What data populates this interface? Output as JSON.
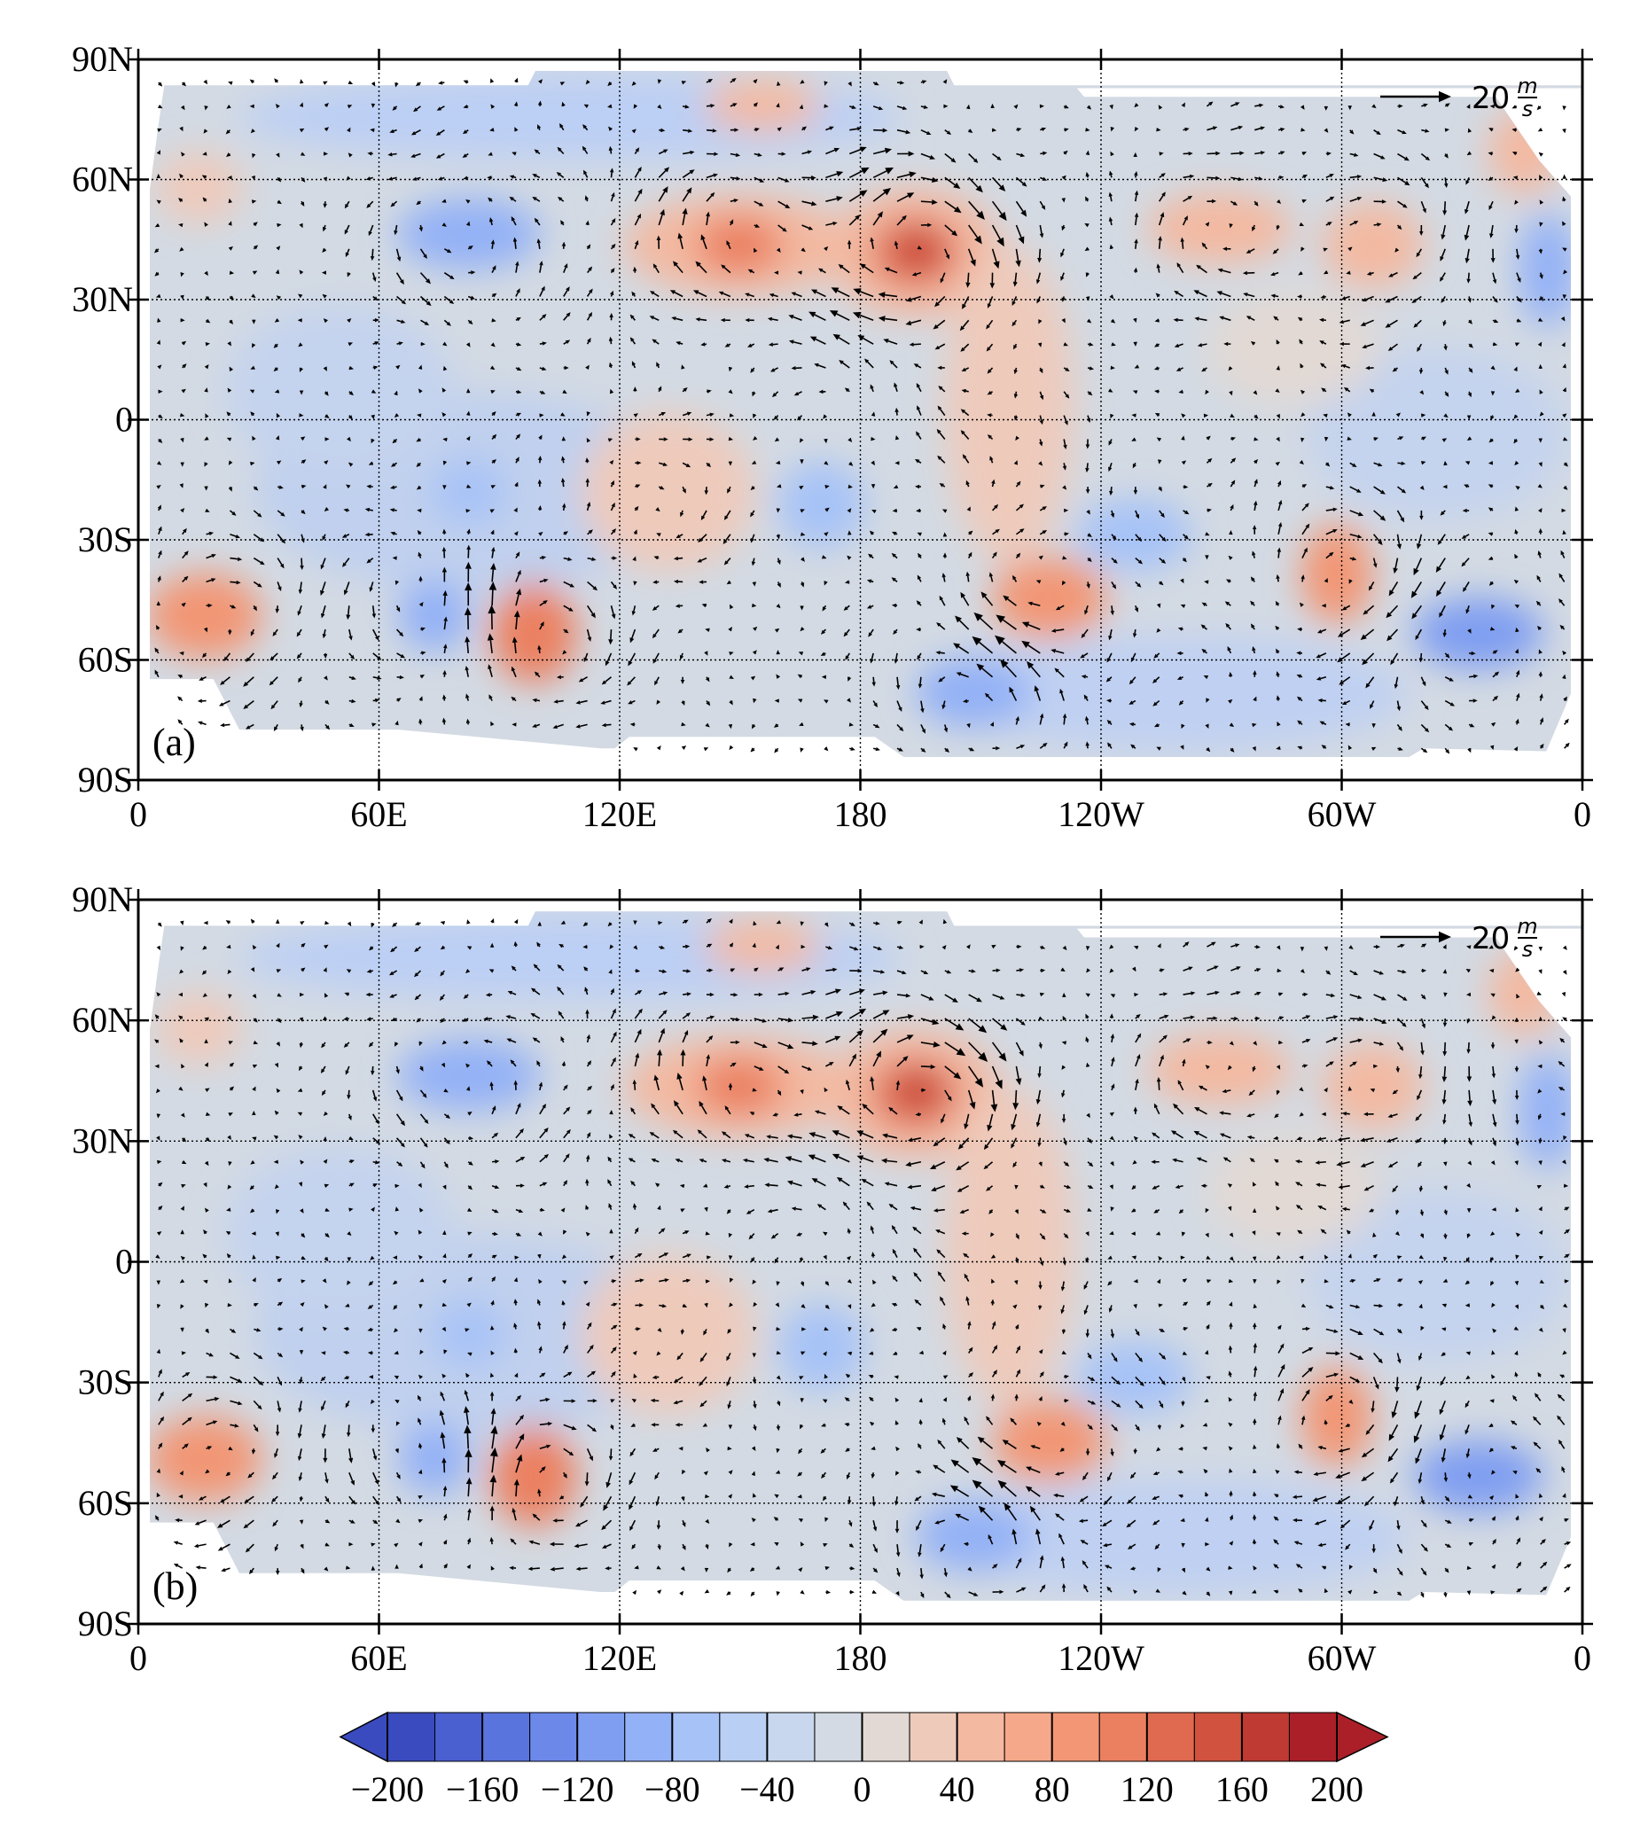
{
  "chart_data": [
    {
      "type": "vector_map",
      "panel_label": "(a)",
      "reference_vector": {
        "value": 20,
        "unit_numerator": "m",
        "unit_denominator": "s"
      },
      "xlim": [
        0,
        360
      ],
      "ylim": [
        -90,
        90
      ],
      "xticks": [
        0,
        {
          "value": 60,
          "label": "60E"
        },
        {
          "value": 120,
          "label": "120E"
        },
        180,
        {
          "value": 240,
          "label": "120W"
        },
        {
          "value": 300,
          "label": "60W"
        },
        {
          "value": 360,
          "label": "0"
        }
      ],
      "yticks": [
        {
          "value": -90,
          "label": "90S"
        },
        {
          "value": -60,
          "label": "60S"
        },
        {
          "value": -30,
          "label": "30S"
        },
        0,
        {
          "value": 30,
          "label": "30N"
        },
        {
          "value": 60,
          "label": "60N"
        },
        {
          "value": 90,
          "label": "90N"
        }
      ],
      "grid": true
    },
    {
      "type": "vector_map",
      "panel_label": "(b)",
      "reference_vector": {
        "value": 20,
        "unit_numerator": "m",
        "unit_denominator": "s"
      },
      "xlim": [
        0,
        360
      ],
      "ylim": [
        -90,
        90
      ],
      "xticks": [
        0,
        {
          "value": 60,
          "label": "60E"
        },
        {
          "value": 120,
          "label": "120E"
        },
        180,
        {
          "value": 240,
          "label": "120W"
        },
        {
          "value": 300,
          "label": "60W"
        },
        {
          "value": 360,
          "label": "0"
        }
      ],
      "yticks": [
        {
          "value": -90,
          "label": "90S"
        },
        {
          "value": -60,
          "label": "60S"
        },
        {
          "value": -30,
          "label": "30S"
        },
        0,
        {
          "value": 30,
          "label": "30N"
        },
        {
          "value": 60,
          "label": "60N"
        },
        {
          "value": 90,
          "label": "90N"
        }
      ],
      "grid": true
    }
  ],
  "colorbar": {
    "levels": [
      -200,
      -180,
      -160,
      -140,
      -120,
      -100,
      -80,
      -60,
      -40,
      -20,
      0,
      20,
      40,
      60,
      80,
      100,
      120,
      140,
      160,
      180,
      200
    ],
    "colors": [
      "#3a4bbf",
      "#4a5fd0",
      "#5a74de",
      "#6c89ea",
      "#7f9ef1",
      "#93b1f6",
      "#a6c2f7",
      "#b9cff4",
      "#c8d7ee",
      "#d3dae3",
      "#e2d9d4",
      "#eecabb",
      "#f3b9a1",
      "#f5a98a",
      "#f29675",
      "#eb8060",
      "#e06a4f",
      "#d1533f",
      "#bf3a32",
      "#ab1f28"
    ],
    "ticks": [
      {
        "value": -200,
        "label": "−200"
      },
      {
        "value": -160,
        "label": "−160"
      },
      {
        "value": -120,
        "label": "−120"
      },
      {
        "value": -80,
        "label": "−80"
      },
      {
        "value": -40,
        "label": "−40"
      },
      0,
      40,
      80,
      120,
      160,
      200
    ]
  }
}
